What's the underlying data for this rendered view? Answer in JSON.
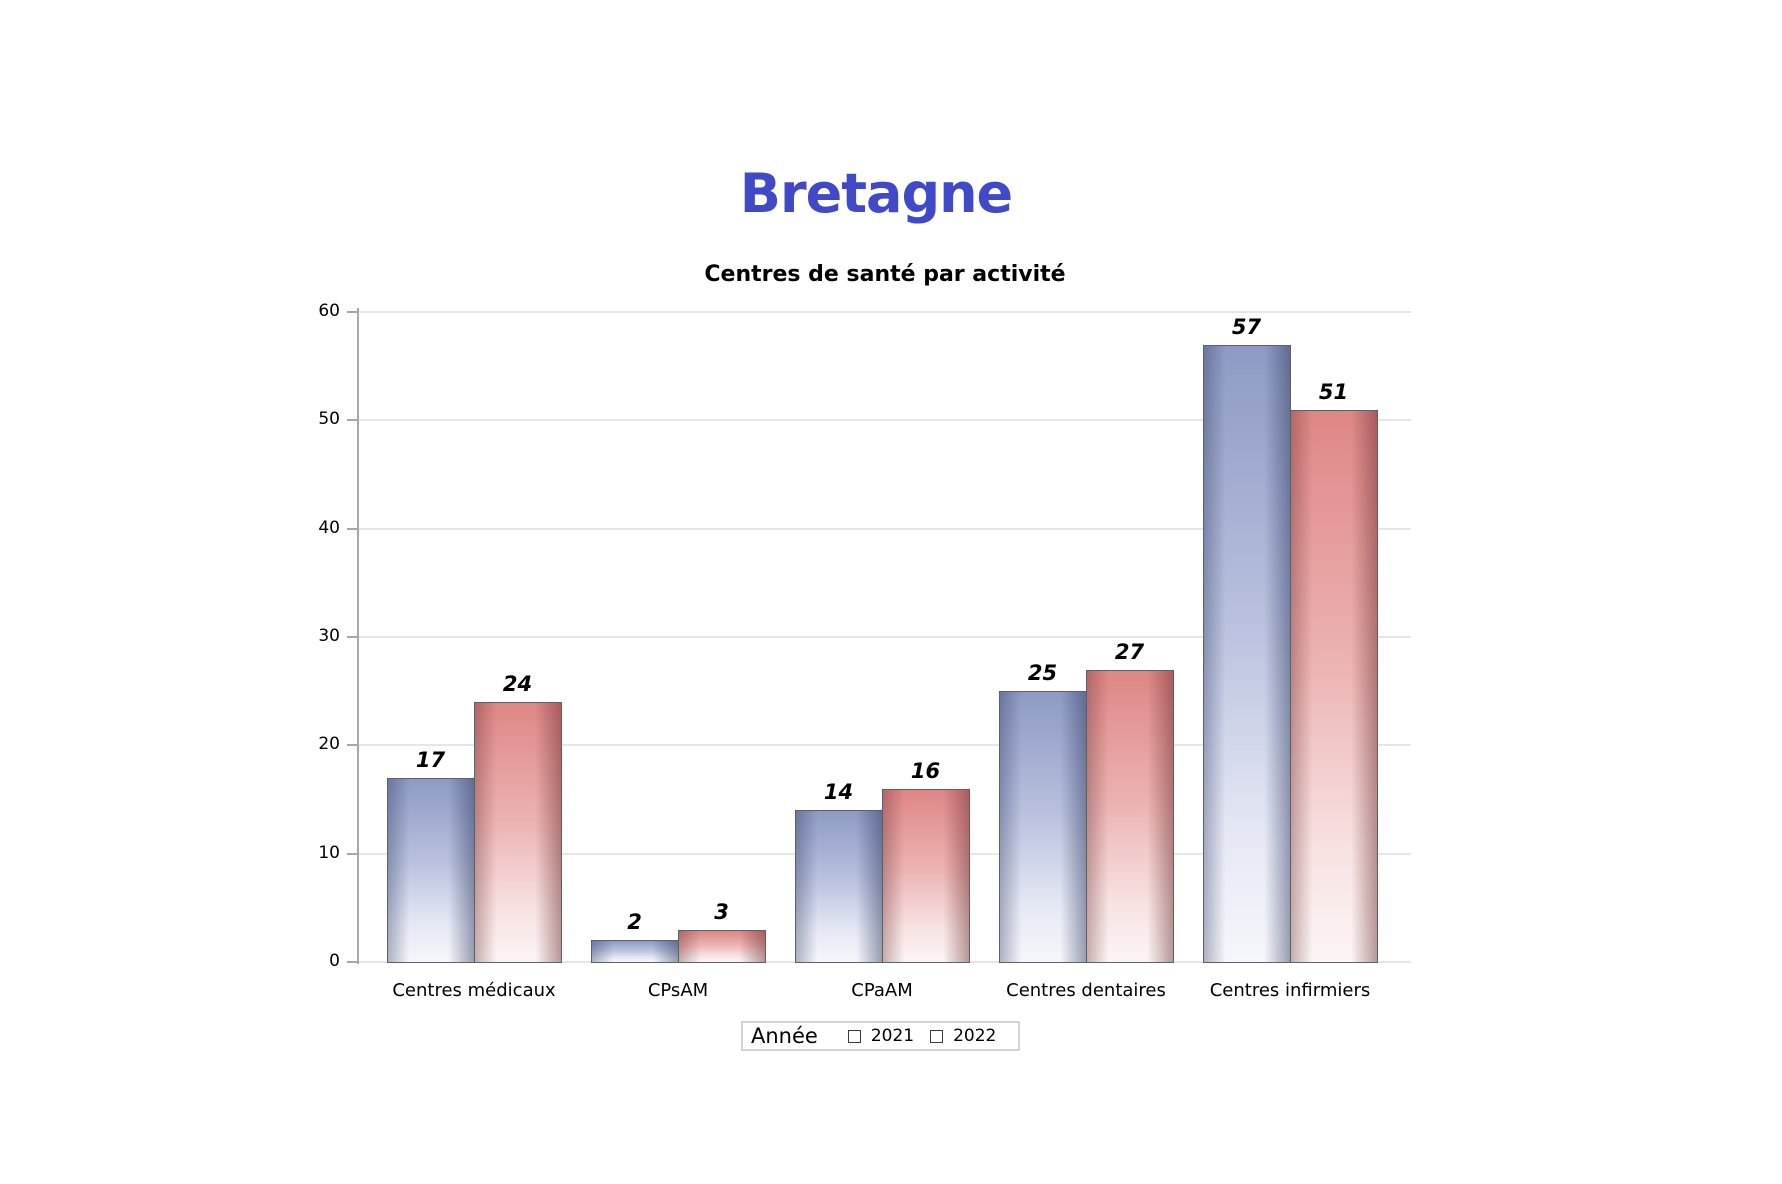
{
  "header": {
    "title": "Bretagne",
    "title_color": "#4049c8",
    "subtitle": "Centres de santé par activité"
  },
  "axis": {
    "y_ticks": [
      "0",
      "10",
      "20",
      "30",
      "40",
      "50",
      "60"
    ]
  },
  "legend": {
    "title": "Année",
    "items": [
      {
        "label": "2021",
        "color": "#8f9ac4"
      },
      {
        "label": "2022",
        "color": "#df8686"
      }
    ]
  },
  "chart_data": {
    "type": "bar",
    "title": "Bretagne",
    "subtitle": "Centres de santé par activité",
    "xlabel": "",
    "ylabel": "",
    "ylim": [
      0,
      60
    ],
    "y_ticks": [
      0,
      10,
      20,
      30,
      40,
      50,
      60
    ],
    "grid": true,
    "legend_position": "bottom",
    "legend_title": "Année",
    "categories": [
      "Centres médicaux",
      "CPsAM",
      "CPaAM",
      "Centres dentaires",
      "Centres infirmiers"
    ],
    "series": [
      {
        "name": "2021",
        "color": "#8f9ac4",
        "values": [
          17,
          2,
          14,
          25,
          57
        ]
      },
      {
        "name": "2022",
        "color": "#df8686",
        "values": [
          24,
          3,
          16,
          27,
          51
        ]
      }
    ],
    "data_labels": true
  }
}
